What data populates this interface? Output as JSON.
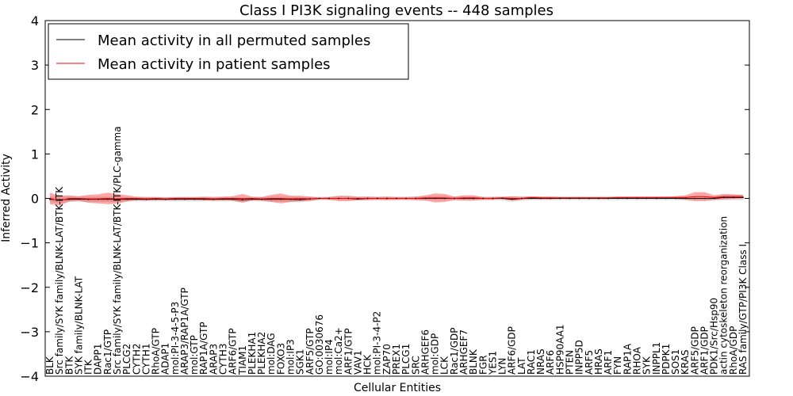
{
  "chart_data": {
    "type": "line",
    "title": "Class I PI3K signaling events -- 448 samples",
    "xlabel": "Cellular Entities",
    "ylabel": "Inferred Activity",
    "ylim": [
      -4,
      4
    ],
    "yticks": [
      -4,
      -3,
      -2,
      -1,
      0,
      1,
      2,
      3,
      4
    ],
    "ytick_labels": [
      "−4",
      "−3",
      "−2",
      "−1",
      "0",
      "1",
      "2",
      "3",
      "4"
    ],
    "grid": false,
    "legend": {
      "placement": "top-left",
      "entries": [
        {
          "label": "Mean activity in all permuted samples",
          "color": "#000000"
        },
        {
          "label": "Mean activity in patient samples",
          "color": "#ff0000"
        }
      ]
    },
    "categories": [
      "BLK",
      "Src family/SYK family/BLNK-LAT/BTK-ITK",
      "BTK",
      "SYK family/BLNK-LAT",
      "ITK",
      "DAPP1",
      "Rac1/GTP",
      "Src family/SYK family/BLNK-LAT/BTK-ITK/PLC-gamma",
      "PLCG2",
      "CYTH2",
      "CYTH1",
      "RhoA/GTP",
      "ADAP1",
      "mol:PI-3-4-5-P3",
      "ARAP3/RAP1A/GTP",
      "mol:GTP",
      "RAP1A/GTP",
      "ARAP3",
      "CYTH3",
      "ARF6/GTP",
      "TIAM1",
      "PLEKHA1",
      "PLEKHA2",
      "mol:DAG",
      "FOXO3",
      "mol:IP3",
      "SGK1",
      "ARF5/GTP",
      "GO:0030676",
      "mol:IP4",
      "mol:Ca2+",
      "ARF1/GTP",
      "VAV1",
      "HCK",
      "mol:PI-3-4-P2",
      "ZAP70",
      "PREX1",
      "PLCG1",
      "SRC",
      "ARHGEF6",
      "mol:GDP",
      "LCK",
      "Rac1/GDP",
      "ARHGEF7",
      "BLNK",
      "FGR",
      "YES1",
      "LYN",
      "ARF6/GDP",
      "LAT",
      "RAC1",
      "NRAS",
      "ARF6",
      "HSP90AA1",
      "PTEN",
      "INPP5D",
      "ARF5",
      "HRAS",
      "ARF1",
      "FYN",
      "RAP1A",
      "RHOA",
      "SYK",
      "INPPL1",
      "PDPK1",
      "SOS1",
      "KRAS",
      "ARF5/GDP",
      "ARF1/GDP",
      "PDK1/Src/Hsp90",
      "actin cytoskeleton reorganization",
      "RhoA/GDP",
      "RAS family/GTP/PI3K Class I"
    ],
    "series": [
      {
        "name": "Mean activity in all permuted samples",
        "color": "#000000",
        "values": [
          -0.02,
          -0.03,
          -0.02,
          -0.02,
          -0.02,
          -0.02,
          -0.02,
          -0.02,
          -0.02,
          -0.02,
          -0.02,
          -0.02,
          -0.02,
          -0.02,
          -0.02,
          -0.02,
          -0.02,
          -0.02,
          -0.02,
          -0.02,
          -0.03,
          -0.02,
          -0.02,
          -0.02,
          -0.02,
          -0.02,
          -0.03,
          -0.01,
          0.0,
          0.0,
          0.0,
          0.0,
          -0.01,
          0.0,
          0.0,
          0.0,
          0.0,
          0.0,
          0.0,
          0.0,
          0.0,
          0.0,
          0.0,
          0.0,
          0.0,
          0.0,
          0.0,
          0.0,
          -0.02,
          0.0,
          0.0,
          0.0,
          0.0,
          0.0,
          0.0,
          0.0,
          0.0,
          0.0,
          0.0,
          0.0,
          0.0,
          0.0,
          0.0,
          0.0,
          0.0,
          0.0,
          0.0,
          0.0,
          0.0,
          0.0,
          0.02,
          0.02,
          0.02
        ],
        "band": [
          0.06,
          0.08,
          0.06,
          0.06,
          0.06,
          0.06,
          0.06,
          0.06,
          0.05,
          0.05,
          0.05,
          0.05,
          0.05,
          0.05,
          0.05,
          0.05,
          0.05,
          0.05,
          0.05,
          0.05,
          0.05,
          0.05,
          0.05,
          0.06,
          0.06,
          0.06,
          0.06,
          0.05,
          0.04,
          0.04,
          0.04,
          0.04,
          0.04,
          0.04,
          0.04,
          0.04,
          0.04,
          0.04,
          0.04,
          0.04,
          0.04,
          0.04,
          0.04,
          0.04,
          0.04,
          0.04,
          0.04,
          0.05,
          0.06,
          0.05,
          0.04,
          0.04,
          0.04,
          0.04,
          0.04,
          0.04,
          0.04,
          0.04,
          0.04,
          0.04,
          0.04,
          0.04,
          0.04,
          0.04,
          0.04,
          0.04,
          0.04,
          0.04,
          0.04,
          0.05,
          0.06,
          0.06,
          0.06
        ]
      },
      {
        "name": "Mean activity in patient samples",
        "color": "#ff0000",
        "values": [
          0.0,
          -0.05,
          0.0,
          0.0,
          -0.01,
          -0.01,
          0.0,
          -0.01,
          0.0,
          0.0,
          -0.01,
          0.0,
          -0.01,
          0.0,
          0.0,
          0.0,
          0.0,
          -0.01,
          0.0,
          0.0,
          0.0,
          0.0,
          -0.01,
          0.0,
          0.0,
          -0.01,
          0.0,
          -0.01,
          0.0,
          0.0,
          0.0,
          0.0,
          0.0,
          0.0,
          0.0,
          0.0,
          0.0,
          0.0,
          0.0,
          0.01,
          0.01,
          0.01,
          0.0,
          0.01,
          0.01,
          0.0,
          0.0,
          0.01,
          0.0,
          0.0,
          0.02,
          0.01,
          0.01,
          0.01,
          0.01,
          0.01,
          0.01,
          0.01,
          0.01,
          0.02,
          0.02,
          0.02,
          0.02,
          0.02,
          0.02,
          0.02,
          0.02,
          0.04,
          0.04,
          0.02,
          0.04,
          0.04,
          0.04
        ],
        "band": [
          0.13,
          0.11,
          0.07,
          0.05,
          0.09,
          0.1,
          0.13,
          0.11,
          0.07,
          0.04,
          0.04,
          0.03,
          0.03,
          0.03,
          0.03,
          0.03,
          0.04,
          0.04,
          0.04,
          0.05,
          0.1,
          0.04,
          0.04,
          0.08,
          0.11,
          0.07,
          0.06,
          0.05,
          0.02,
          0.03,
          0.06,
          0.06,
          0.04,
          0.04,
          0.03,
          0.04,
          0.03,
          0.03,
          0.04,
          0.06,
          0.1,
          0.09,
          0.04,
          0.06,
          0.06,
          0.03,
          0.03,
          0.02,
          0.05,
          0.03,
          0.03,
          0.03,
          0.03,
          0.02,
          0.02,
          0.02,
          0.02,
          0.02,
          0.02,
          0.02,
          0.02,
          0.02,
          0.02,
          0.02,
          0.02,
          0.03,
          0.05,
          0.1,
          0.1,
          0.05,
          0.06,
          0.05,
          0.04
        ]
      }
    ]
  }
}
